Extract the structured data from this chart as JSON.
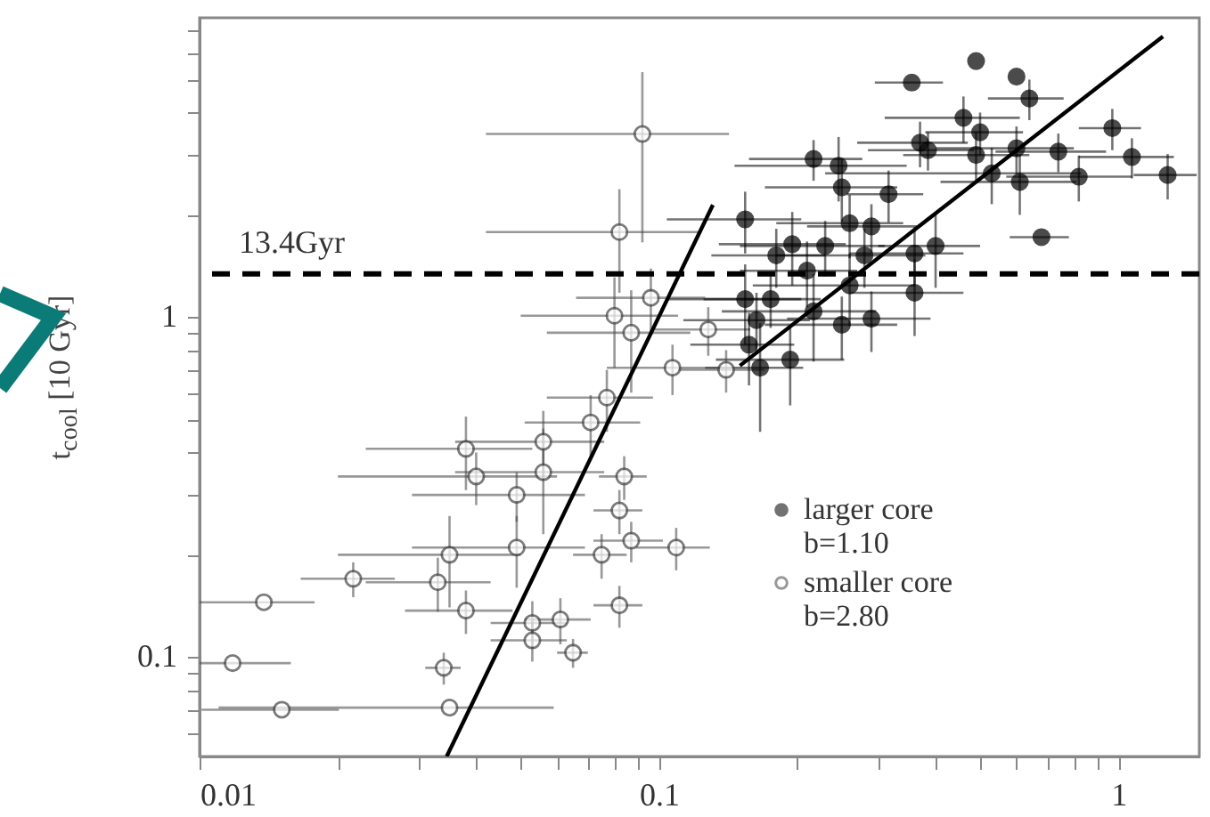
{
  "chart_data": {
    "type": "scatter",
    "ylabel": "t$_{cool}$ [10 Gyr]",
    "log": "xy",
    "marker": "circle",
    "legend": "bottom right",
    "xlim": [
      0.01,
      1.5
    ],
    "ylim": [
      0.051,
      7.6
    ],
    "xticks": [
      0.01,
      {
        "value": 0.02,
        "label": null
      },
      {
        "value": 0.03,
        "label": null
      },
      {
        "value": 0.04,
        "label": null
      },
      {
        "value": 0.05,
        "label": null
      },
      {
        "value": 0.06,
        "label": null
      },
      {
        "value": 0.07,
        "label": null
      },
      {
        "value": 0.08,
        "label": null
      },
      {
        "value": 0.09,
        "label": null
      },
      0.1,
      {
        "value": 0.2,
        "label": null
      },
      {
        "value": 0.3,
        "label": null
      },
      {
        "value": 0.4,
        "label": null
      },
      {
        "value": 0.5,
        "label": null
      },
      {
        "value": 0.6,
        "label": null
      },
      {
        "value": 0.7,
        "label": null
      },
      {
        "value": 0.8,
        "label": null
      },
      {
        "value": 0.9,
        "label": null
      },
      1
    ],
    "yticks": [
      {
        "value": 0.06,
        "label": null
      },
      {
        "value": 0.07,
        "label": null
      },
      {
        "value": 0.08,
        "label": null
      },
      {
        "value": 0.09,
        "label": null
      },
      0.1,
      {
        "value": 0.2,
        "label": null
      },
      {
        "value": 0.3,
        "label": null
      },
      {
        "value": 0.4,
        "label": null
      },
      {
        "value": 0.5,
        "label": null
      },
      {
        "value": 0.6,
        "label": null
      },
      {
        "value": 0.7,
        "label": null
      },
      {
        "value": 0.8,
        "label": null
      },
      {
        "value": 0.9,
        "label": null
      },
      1,
      {
        "value": 2,
        "label": null
      },
      {
        "value": 3,
        "label": null
      },
      {
        "value": 4,
        "label": null
      },
      {
        "value": 5,
        "label": null
      },
      {
        "value": 6,
        "label": null
      },
      {
        "value": 7,
        "label": null
      }
    ],
    "ref_lines": [
      {
        "axis": "y",
        "value": 1.34,
        "label": "13.4Gyr",
        "color": "#000000",
        "line_style": "dashed"
      }
    ],
    "series": [
      {
        "name": "larger core b=1.10",
        "color": "#000000",
        "x": [
          0.49,
          0.355,
          0.6,
          0.64,
          0.46,
          0.5,
          0.37,
          0.385,
          0.49,
          0.6,
          0.74,
          0.97,
          1.07,
          1.28,
          0.82,
          0.61,
          0.53,
          0.217,
          0.246,
          0.25,
          0.316,
          0.154,
          0.26,
          0.29,
          0.68,
          0.195,
          0.23,
          0.4,
          0.18,
          0.28,
          0.36,
          0.21,
          0.26,
          0.36,
          0.154,
          0.175,
          0.163,
          0.217,
          0.25,
          0.29,
          0.157,
          0.193,
          0.166
        ],
        "values": [
          5.67,
          4.9,
          5.1,
          4.4,
          3.86,
          3.5,
          3.26,
          3.1,
          3.0,
          3.14,
          3.07,
          3.6,
          2.96,
          2.62,
          2.59,
          2.5,
          2.65,
          2.92,
          2.79,
          2.41,
          2.3,
          1.94,
          1.89,
          1.85,
          1.72,
          1.64,
          1.62,
          1.62,
          1.52,
          1.52,
          1.54,
          1.37,
          1.24,
          1.18,
          1.13,
          1.13,
          0.98,
          1.04,
          0.95,
          0.99,
          0.83,
          0.75,
          0.71
        ],
        "xerrors": [
          null,
          0.06,
          null,
          0.12,
          0.15,
          0.12,
          0.1,
          0.1,
          0.15,
          0.2,
          0.2,
          0.15,
          0.25,
          0.2,
          0.25,
          0.2,
          0.3,
          0.06,
          0.1,
          0.08,
          0.06,
          0.05,
          0.08,
          0.08,
          0.1,
          0.06,
          0.08,
          0.1,
          0.05,
          0.1,
          0.1,
          0.06,
          0.1,
          0.1,
          0.05,
          0.05,
          0.05,
          0.08,
          0.08,
          0.1,
          0.04,
          0.06,
          0.04
        ],
        "errors": [
          null,
          null,
          null,
          0.6,
          0.6,
          0.5,
          0.5,
          0.4,
          0.5,
          0.5,
          0.4,
          0.5,
          0.4,
          0.4,
          0.4,
          0.5,
          0.5,
          0.4,
          0.6,
          0.5,
          0.4,
          0.4,
          0.4,
          0.3,
          null,
          0.4,
          0.3,
          0.4,
          0.3,
          0.3,
          0.3,
          0.3,
          0.3,
          0.3,
          0.3,
          0.2,
          0.2,
          0.3,
          0.2,
          0.2,
          0.2,
          0.2,
          0.25
        ]
      },
      {
        "name": "smaller core b=2.80",
        "color": "#444444",
        "x": [
          0.092,
          0.082,
          0.096,
          0.08,
          0.087,
          0.107,
          0.077,
          0.071,
          0.056,
          0.038,
          0.04,
          0.056,
          0.049,
          0.084,
          0.082,
          0.049,
          0.035,
          0.075,
          0.087,
          0.109,
          0.0216,
          0.033,
          0.0138,
          0.038,
          0.053,
          0.061,
          0.082,
          0.0118,
          0.034,
          0.053,
          0.065,
          0.0151,
          0.035,
          0.128,
          0.14
        ],
        "values": [
          3.46,
          1.78,
          1.14,
          1.01,
          0.9,
          0.71,
          0.58,
          0.49,
          0.43,
          0.41,
          0.34,
          0.35,
          0.3,
          0.34,
          0.27,
          0.21,
          0.2,
          0.2,
          0.22,
          0.21,
          0.17,
          0.166,
          0.145,
          0.137,
          0.126,
          0.129,
          0.142,
          0.096,
          0.093,
          0.112,
          0.103,
          0.07,
          0.071,
          0.92,
          0.7
        ],
        "xerrors": [
          0.05,
          0.04,
          0.03,
          0.03,
          0.03,
          0.03,
          0.02,
          0.02,
          0.02,
          0.015,
          0.02,
          0.02,
          0.02,
          0.01,
          0.01,
          0.02,
          0.015,
          0.01,
          0.015,
          0.02,
          0.005,
          0.01,
          0.004,
          0.01,
          0.01,
          0.01,
          0.01,
          0.004,
          0.003,
          0.01,
          0.005,
          0.005,
          0.024,
          0.03,
          0.03
        ],
        "errors": [
          1.8,
          0.6,
          0.25,
          0.3,
          0.3,
          0.12,
          0.12,
          0.1,
          0.1,
          0.1,
          0.06,
          0.12,
          0.05,
          0.05,
          0.04,
          0.05,
          0.06,
          0.03,
          0.03,
          0.03,
          0.02,
          0.03,
          null,
          0.02,
          0.02,
          0.02,
          0.02,
          null,
          0.01,
          0.015,
          0.01,
          null,
          null,
          0.15,
          0.1
        ]
      },
      {
        "type": "line",
        "marker": "none",
        "color": "#000000",
        "x": [
          0.0345,
          0.131
        ],
        "values": [
          0.051,
          2.14
        ]
      },
      {
        "type": "line",
        "marker": "none",
        "color": "#000000",
        "x": [
          0.15,
          1.25
        ],
        "values": [
          0.72,
          6.7
        ]
      }
    ]
  }
}
